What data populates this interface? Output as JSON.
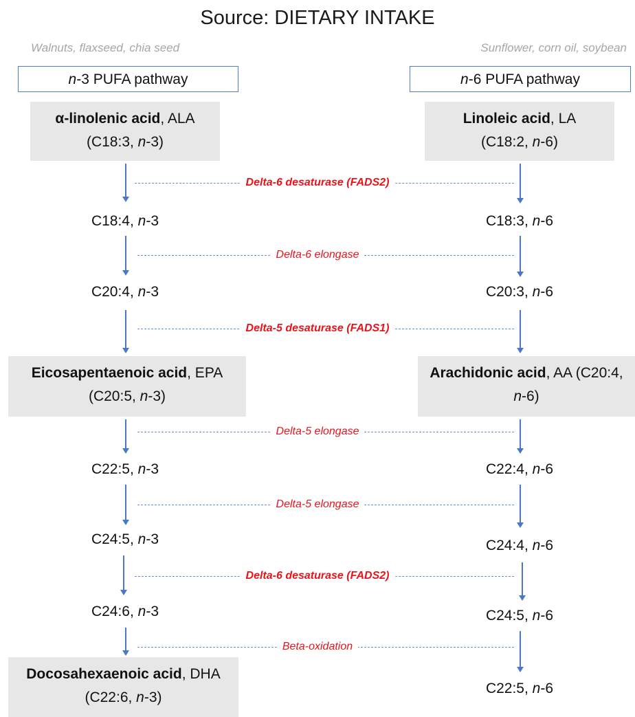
{
  "title": "Source: DIETARY INTAKE",
  "sources": {
    "left": "Walnuts, flaxseed, chia seed",
    "right": "Sunflower, corn oil, soybean"
  },
  "pathways": {
    "left": {
      "n": "n",
      "rest": "-3 PUFA pathway"
    },
    "right": {
      "n": "n",
      "rest": "-6 PUFA pathway"
    }
  },
  "n3": {
    "ala": {
      "name": "α-linolenic acid",
      "abbr": ", ALA",
      "l2a": "(C18:3, ",
      "n": "n",
      "l2b": "-3)"
    },
    "c18_4": {
      "a": "C18:4, ",
      "n": "n",
      "b": "-3"
    },
    "c20_4": {
      "a": "C20:4, ",
      "n": "n",
      "b": "-3"
    },
    "epa": {
      "name": "Eicosapentaenoic acid",
      "abbr": ", EPA",
      "l2a": "(C20:5, ",
      "n": "n",
      "l2b": "-3)"
    },
    "c22_5": {
      "a": "C22:5, ",
      "n": "n",
      "b": "-3"
    },
    "c24_5": {
      "a": "C24:5, ",
      "n": "n",
      "b": "-3"
    },
    "c24_6": {
      "a": "C24:6, ",
      "n": "n",
      "b": "-3"
    },
    "dha": {
      "name": "Docosahexaenoic acid",
      "abbr": ", DHA",
      "l2a": "(C22:6, ",
      "n": "n",
      "l2b": "-3)"
    }
  },
  "n6": {
    "la": {
      "name": "Linoleic acid",
      "abbr": ", LA",
      "l2a": "(C18:2, ",
      "n": "n",
      "l2b": "-6)"
    },
    "c18_3": {
      "a": "C18:3, ",
      "n": "n",
      "b": "-6"
    },
    "c20_3": {
      "a": "C20:3, ",
      "n": "n",
      "b": "-6"
    },
    "aa": {
      "name": "Arachidonic acid",
      "abbr": ", AA (C20:4,",
      "n": "n",
      "l2b": "-6)"
    },
    "c22_4": {
      "a": "C22:4, ",
      "n": "n",
      "b": "-6"
    },
    "c24_4": {
      "a": "C24:4, ",
      "n": "n",
      "b": "-6"
    },
    "c24_5": {
      "a": "C24:5, ",
      "n": "n",
      "b": "-6"
    },
    "c22_5": {
      "a": "C22:5, ",
      "n": "n",
      "b": "-6"
    }
  },
  "enzymes": {
    "e1": "Delta-6 desaturase (FADS2)",
    "e2": "Delta-6 elongase",
    "e3": "Delta-5 desaturase (FADS1)",
    "e4": "Delta-5 elongase",
    "e5": "Delta-5 elongase",
    "e6": "Delta-6 desaturase (FADS2)",
    "e7": "Beta-oxidation"
  }
}
